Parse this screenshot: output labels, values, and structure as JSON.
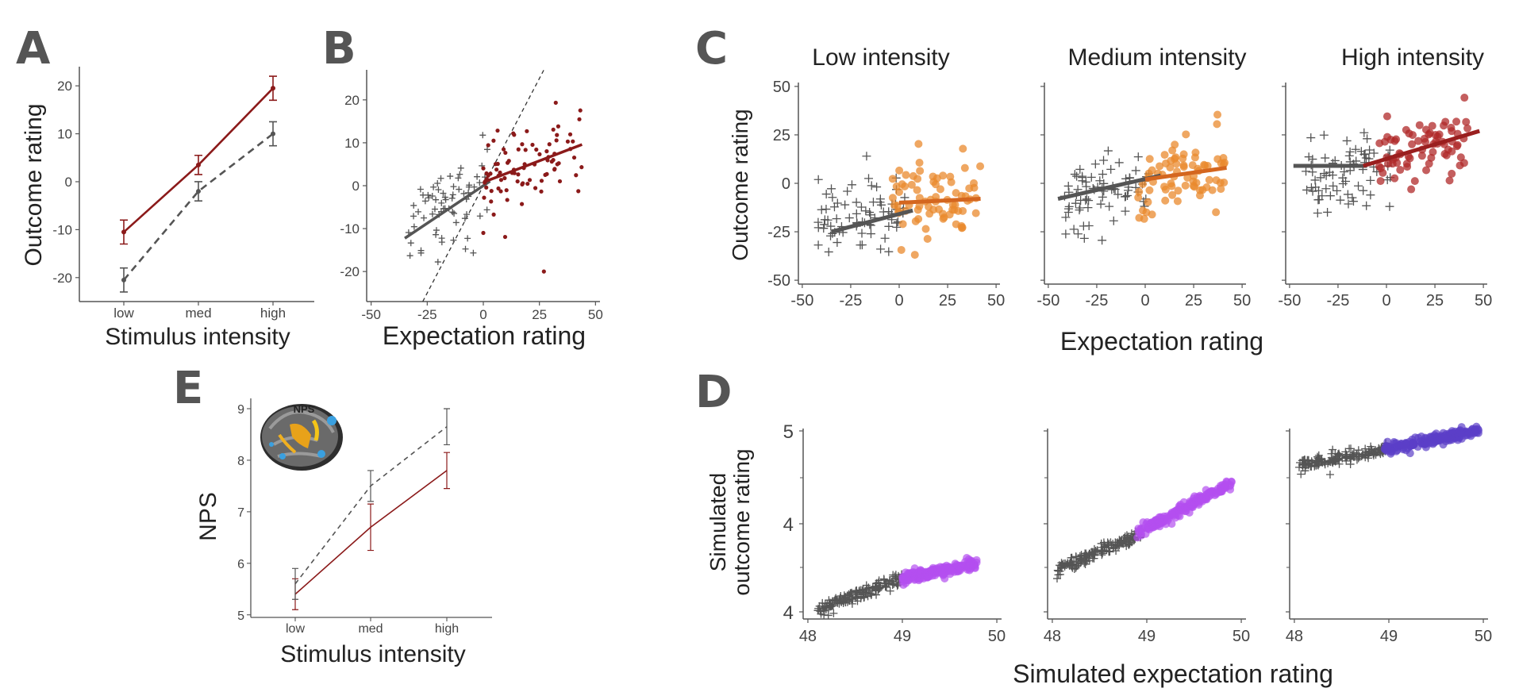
{
  "panels": {
    "A": {
      "letter": "A"
    },
    "B": {
      "letter": "B"
    },
    "C": {
      "letter": "C"
    },
    "D": {
      "letter": "D"
    },
    "E": {
      "letter": "E"
    }
  },
  "colors": {
    "dark_red": "#8b1a1a",
    "gray": "#555555",
    "orange": "#ea8a2e",
    "orange_dark": "#d4661f",
    "red_points": "#b02a2a",
    "purple": "#b44ff0",
    "indigo": "#5b3fc8",
    "axis": "#555555"
  },
  "chart_data": [
    {
      "id": "A",
      "type": "line",
      "categories": [
        "low",
        "med",
        "high"
      ],
      "xlabel": "Stimulus intensity",
      "ylabel": "Outcome rating",
      "yticks": [
        "-20",
        "-10",
        "0",
        "10",
        "20"
      ],
      "ylim": [
        -25,
        24
      ],
      "series": [
        {
          "style": "solid",
          "color": "#8b1a1a",
          "values": [
            -10.5,
            3.5,
            19.5
          ],
          "err": [
            2.5,
            2,
            2.5
          ]
        },
        {
          "style": "dashed",
          "color": "#555555",
          "values": [
            -20.5,
            -2.0,
            10.0
          ],
          "err": [
            2.5,
            2,
            2.5
          ]
        }
      ]
    },
    {
      "id": "B",
      "type": "scatter",
      "xlabel": "Expectation rating",
      "xticks": [
        "-50",
        "-25",
        "0",
        "25",
        "50"
      ],
      "yticks": [
        "-20",
        "-10",
        "0",
        "10",
        "20"
      ],
      "xlim": [
        -52,
        52
      ],
      "ylim": [
        -27,
        27
      ],
      "groups": [
        {
          "marker": "plus",
          "color": "#555555",
          "x_range": [
            -35,
            3
          ],
          "slope": 0.35,
          "intercept": 0,
          "n": 70
        },
        {
          "marker": "dot",
          "color": "#8b1a1a",
          "x_range": [
            0,
            44
          ],
          "slope": 0.2,
          "intercept": 0.8,
          "n": 85
        }
      ],
      "identity_line": true
    },
    {
      "id": "C",
      "type": "scatter",
      "xlabel": "Expectation rating",
      "ylabel": "Outcome rating",
      "xticks": [
        "-50",
        "-25",
        "0",
        "25",
        "50"
      ],
      "yticks": [
        "-50",
        "-25",
        "0",
        "25",
        "50"
      ],
      "xlim": [
        -52,
        52
      ],
      "ylim": [
        -52,
        52
      ],
      "facets": [
        {
          "title": "Low intensity",
          "pos_color": "#ea8a2e",
          "fit_color": "#d4661f",
          "neg_fit": [
            -35,
            -25,
            7,
            -14
          ],
          "pos_fit": [
            0,
            -10,
            42,
            -8
          ],
          "neg_center": -17,
          "pos_center": -8
        },
        {
          "title": "Medium intensity",
          "pos_color": "#ea8a2e",
          "fit_color": "#d4661f",
          "neg_fit": [
            -45,
            -8,
            8,
            4
          ],
          "pos_fit": [
            0,
            2,
            42,
            8
          ],
          "neg_center": -3,
          "pos_center": 3
        },
        {
          "title": "High intensity",
          "pos_color": "#b02a2a",
          "fit_color": "#9a1f1f",
          "neg_fit": [
            -48,
            9,
            -10,
            9
          ],
          "pos_fit": [
            -12,
            9,
            48,
            27
          ],
          "neg_center": 8,
          "pos_center": 19
        }
      ]
    },
    {
      "id": "D",
      "type": "scatter",
      "xlabel": "Simulated expectation rating",
      "ylabel_lines": [
        "Simulated",
        "outcome rating"
      ],
      "xticks": [
        "48",
        "49",
        "50"
      ],
      "facet_yticks": [
        [
          "4",
          "4",
          "5"
        ],
        [
          "4",
          "4",
          "5"
        ],
        [
          "4",
          "4",
          "5"
        ]
      ],
      "xlim": [
        47.95,
        50.05
      ],
      "facets": [
        {
          "neg": [
            48.1,
            3.2,
            49.0,
            3.55
          ],
          "pos": [
            49.0,
            3.55,
            49.8,
            3.72
          ],
          "pos_color": "#b44ff0"
        },
        {
          "neg": [
            48.05,
            3.65,
            48.95,
            4.05
          ],
          "pos": [
            48.9,
            4.05,
            49.9,
            4.6
          ],
          "pos_color": "#b44ff0"
        },
        {
          "neg": [
            48.05,
            4.8,
            49.0,
            4.98
          ],
          "pos": [
            48.95,
            4.98,
            49.95,
            5.18
          ],
          "pos_color": "#5b3fc8"
        }
      ]
    },
    {
      "id": "E",
      "type": "line",
      "categories": [
        "low",
        "med",
        "high"
      ],
      "xlabel": "Stimulus intensity",
      "ylabel": "NPS",
      "yticks": [
        "5",
        "6",
        "7",
        "8",
        "9"
      ],
      "ylim": [
        4.95,
        9.2
      ],
      "inset_label": "NPS",
      "series": [
        {
          "style": "solid",
          "color": "#8b1a1a",
          "values": [
            5.4,
            6.7,
            7.8
          ],
          "err": [
            0.3,
            0.45,
            0.35
          ]
        },
        {
          "style": "dashed",
          "color": "#555555",
          "values": [
            5.6,
            7.5,
            8.65
          ],
          "err": [
            0.3,
            0.3,
            0.35
          ]
        }
      ]
    }
  ]
}
